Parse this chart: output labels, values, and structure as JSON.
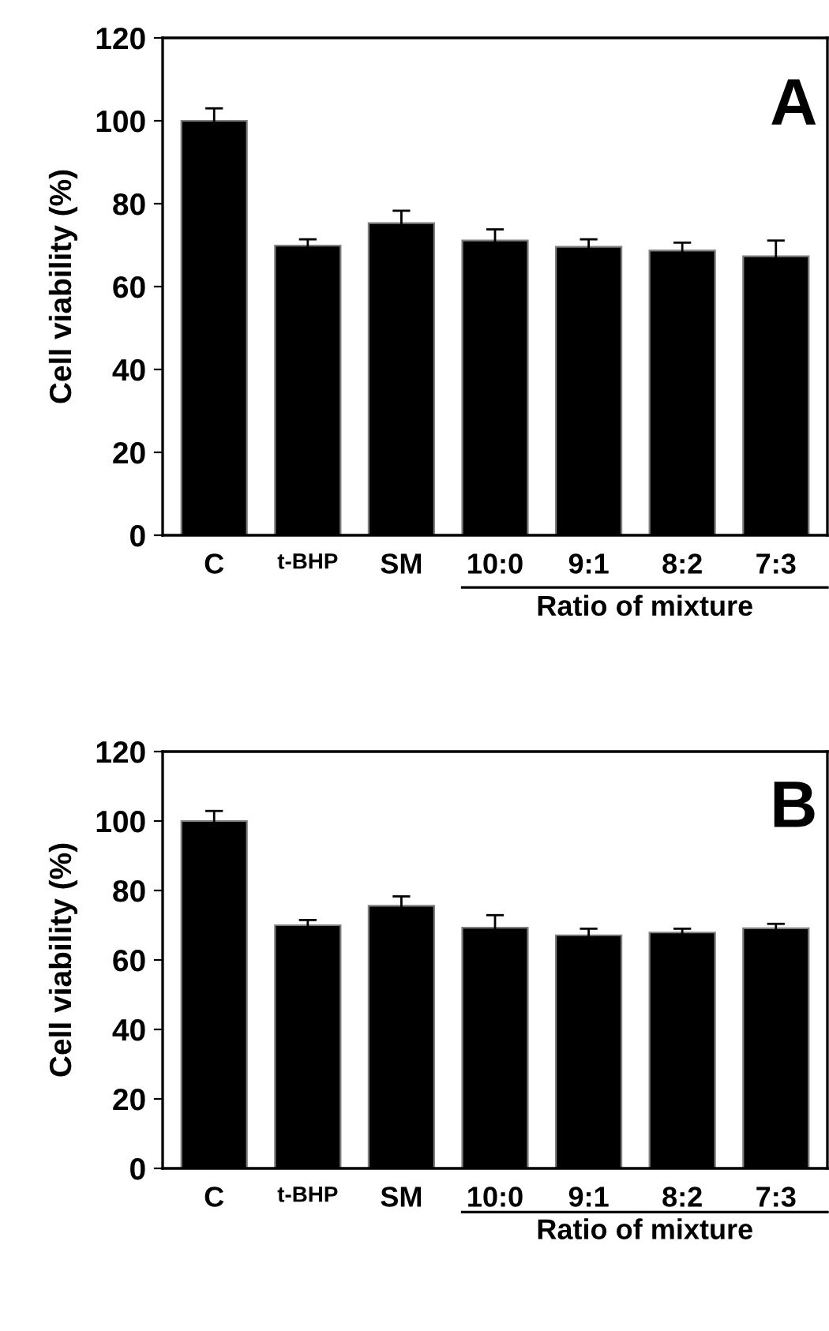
{
  "chart_data": [
    {
      "type": "bar",
      "ylabel": "Cell viability (%)",
      "categories": [
        "C",
        "t-BHP",
        "SM",
        "10:0",
        "9:1",
        "8:2",
        "7:3"
      ],
      "values": [
        100,
        69.9,
        75.3,
        71.1,
        69.6,
        68.7,
        67.3
      ],
      "errors": [
        3.0,
        1.5,
        3.0,
        2.7,
        1.8,
        1.9,
        3.8
      ],
      "color": "#000000",
      "ylim": [
        0,
        120
      ],
      "yticks": [
        0,
        20,
        40,
        60,
        80,
        100,
        120
      ],
      "grid": false,
      "annotations": [
        "A",
        "Ratio of mixture"
      ]
    },
    {
      "type": "bar",
      "ylabel": "Cell viability (%)",
      "categories": [
        "C",
        "t-BHP",
        "SM",
        "10:0",
        "9:1",
        "8:2",
        "7:3"
      ],
      "values": [
        100,
        70.0,
        75.6,
        69.3,
        67.1,
        67.9,
        69.1
      ],
      "errors": [
        2.9,
        1.5,
        2.7,
        3.6,
        1.9,
        1.1,
        1.3
      ],
      "color": "#000000",
      "ylim": [
        0,
        120
      ],
      "yticks": [
        0,
        20,
        40,
        60,
        80,
        100,
        120
      ],
      "grid": false,
      "annotations": [
        "B",
        "Ratio of mixture"
      ]
    }
  ]
}
